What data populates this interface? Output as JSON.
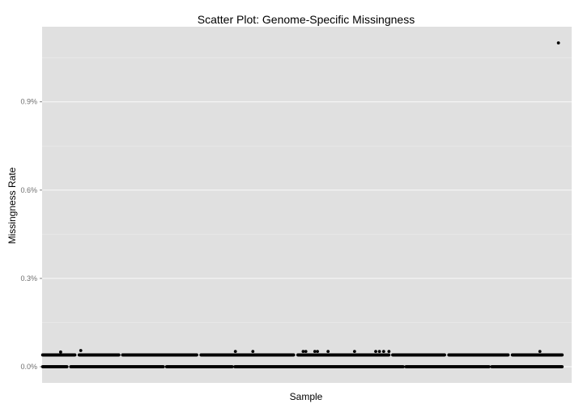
{
  "chart_data": {
    "type": "scatter",
    "title": "Scatter Plot: Genome-Specific Missingness",
    "xlabel": "Sample",
    "ylabel": "Missingness Rate",
    "y_ticks": [
      {
        "value": 0.0,
        "label": "0.0%"
      },
      {
        "value": 0.3,
        "label": "0.3%"
      },
      {
        "value": 0.6,
        "label": "0.6%"
      },
      {
        "value": 0.9,
        "label": "0.9%"
      }
    ],
    "x_ticks": [],
    "y_unit": "%",
    "ylim": [
      -0.055,
      1.155
    ],
    "xlim": [
      0,
      1000
    ],
    "grid": true,
    "legend": "none",
    "colors": {
      "panel_background": "#e0e0e0",
      "grid_major": "#f5f5f5",
      "grid_minor": "#ebebeb",
      "points": "#000000"
    },
    "n_samples": 982,
    "series": [
      {
        "baseline_points": {
          "x_range": [
            1,
            982
          ],
          "y": 0.0,
          "gaps": [
            [
              48,
              53
            ],
            [
              230,
              234
            ],
            [
              360,
              363
            ],
            [
              683,
              686
            ],
            [
              845,
              848
            ]
          ]
        },
        "band_points": {
          "y": 0.04,
          "segments": [
            [
              1,
              62
            ],
            [
              70,
              145
            ],
            [
              152,
              292
            ],
            [
              300,
              475
            ],
            [
              483,
              655
            ],
            [
              662,
              760
            ],
            [
              768,
              880
            ],
            [
              888,
              982
            ]
          ]
        },
        "scattered_points": [
          {
            "x": 35,
            "y": 0.05
          },
          {
            "x": 73,
            "y": 0.055
          },
          {
            "x": 365,
            "y": 0.052
          },
          {
            "x": 398,
            "y": 0.052
          },
          {
            "x": 493,
            "y": 0.052
          },
          {
            "x": 498,
            "y": 0.052
          },
          {
            "x": 515,
            "y": 0.052
          },
          {
            "x": 520,
            "y": 0.052
          },
          {
            "x": 540,
            "y": 0.052
          },
          {
            "x": 590,
            "y": 0.052
          },
          {
            "x": 630,
            "y": 0.052
          },
          {
            "x": 637,
            "y": 0.052
          },
          {
            "x": 645,
            "y": 0.052
          },
          {
            "x": 655,
            "y": 0.052
          },
          {
            "x": 940,
            "y": 0.052
          }
        ],
        "outliers": [
          {
            "x": 975,
            "y": 1.1
          }
        ]
      }
    ]
  }
}
